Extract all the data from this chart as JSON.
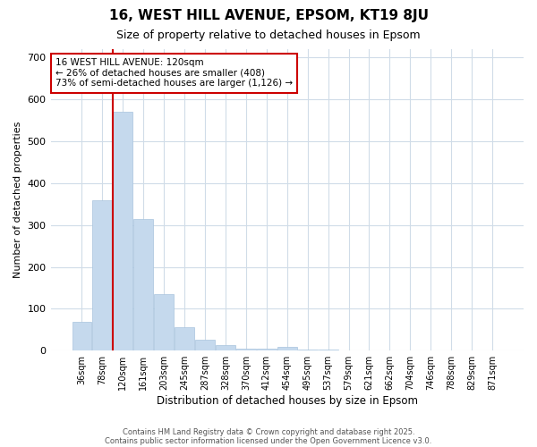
{
  "title1": "16, WEST HILL AVENUE, EPSOM, KT19 8JU",
  "title2": "Size of property relative to detached houses in Epsom",
  "xlabel": "Distribution of detached houses by size in Epsom",
  "ylabel": "Number of detached properties",
  "categories": [
    "36sqm",
    "78sqm",
    "120sqm",
    "161sqm",
    "203sqm",
    "245sqm",
    "287sqm",
    "328sqm",
    "370sqm",
    "412sqm",
    "454sqm",
    "495sqm",
    "537sqm",
    "579sqm",
    "621sqm",
    "662sqm",
    "704sqm",
    "746sqm",
    "788sqm",
    "829sqm",
    "871sqm"
  ],
  "values": [
    68,
    360,
    570,
    315,
    135,
    55,
    25,
    14,
    5,
    4,
    10,
    3,
    3,
    1,
    0,
    0,
    0,
    0,
    0,
    0,
    0
  ],
  "bar_color": "#c5d9ed",
  "bar_edge_color": "#a8c4de",
  "red_line_index": 2,
  "annotation_title": "16 WEST HILL AVENUE: 120sqm",
  "annotation_line1": "← 26% of detached houses are smaller (408)",
  "annotation_line2": "73% of semi-detached houses are larger (1,126) →",
  "annotation_box_color": "#ffffff",
  "annotation_box_edge": "#cc0000",
  "red_line_color": "#cc0000",
  "background_color": "#ffffff",
  "grid_color": "#d0dce8",
  "ylim": [
    0,
    720
  ],
  "yticks": [
    0,
    100,
    200,
    300,
    400,
    500,
    600,
    700
  ],
  "footer1": "Contains HM Land Registry data © Crown copyright and database right 2025.",
  "footer2": "Contains public sector information licensed under the Open Government Licence v3.0."
}
